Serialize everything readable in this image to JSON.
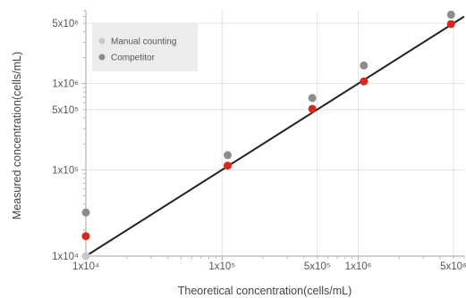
{
  "chart_data": {
    "type": "scatter",
    "xlabel": "Theoretical concentration(cells/mL)",
    "ylabel": "Measured concentration(cells/mL)",
    "x_scale": "log",
    "y_scale": "log",
    "xlim": [
      10000,
      6000000
    ],
    "ylim": [
      10000,
      7000000
    ],
    "grid": true,
    "legend_position": "top-left",
    "x_ticks": [
      {
        "value": 10000,
        "label": "1x10⁴"
      },
      {
        "value": 100000,
        "label": "1x10⁵"
      },
      {
        "value": 500000,
        "label": "5x10⁵"
      },
      {
        "value": 1000000,
        "label": "1x10⁶"
      },
      {
        "value": 5000000,
        "label": "5x10⁶"
      }
    ],
    "y_ticks": [
      {
        "value": 10000,
        "label": "1x10⁴"
      },
      {
        "value": 100000,
        "label": "1x10⁵"
      },
      {
        "value": 500000,
        "label": "5x10⁵"
      },
      {
        "value": 1000000,
        "label": "1x10⁶"
      },
      {
        "value": 5000000,
        "label": "5x10⁶"
      }
    ],
    "series": [
      {
        "name": "Manual counting",
        "color": "#c8c8c8",
        "x": [
          10000
        ],
        "y": [
          10000
        ]
      },
      {
        "name": "Competitor",
        "color": "#8c8c8c",
        "x": [
          10000,
          110000,
          460000,
          1100000,
          4800000
        ],
        "y": [
          32000,
          148000,
          680000,
          1620000,
          6300000
        ]
      },
      {
        "name": "",
        "color": "#d42a1e",
        "x": [
          10000,
          110000,
          460000,
          1100000,
          4800000
        ],
        "y": [
          17000,
          112000,
          510000,
          1060000,
          4900000
        ]
      }
    ],
    "fit_line": {
      "color": "#222222",
      "from": [
        10000,
        10000
      ],
      "to": [
        6000000,
        6000000
      ]
    }
  }
}
